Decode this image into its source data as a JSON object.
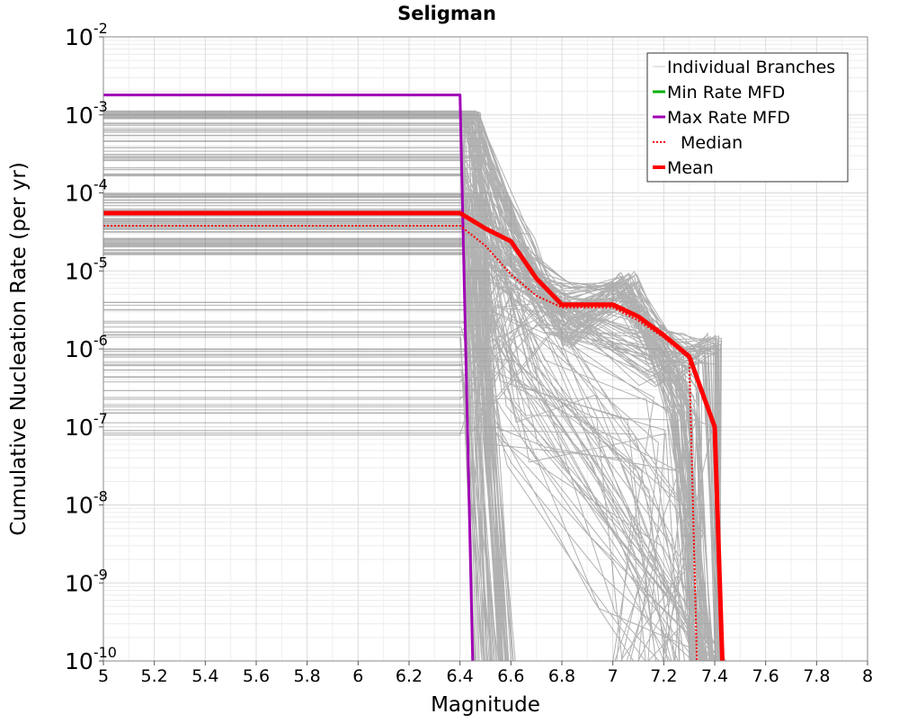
{
  "chart_data": {
    "type": "line",
    "title": "Seligman",
    "xlabel": "Magnitude",
    "ylabel": "Cumulative Nucleation Rate (per yr)",
    "xlim": [
      5,
      8
    ],
    "ylim": [
      1e-10,
      0.01
    ],
    "yscale": "log",
    "x_ticks": [
      "5",
      "5.2",
      "5.4",
      "5.6",
      "5.8",
      "6",
      "6.2",
      "6.4",
      "6.6",
      "6.8",
      "7",
      "7.2",
      "7.4",
      "7.6",
      "7.8",
      "8"
    ],
    "y_ticks": [
      {
        "base": "10",
        "exp": "-10",
        "value": 1e-10
      },
      {
        "base": "10",
        "exp": "-9",
        "value": 1e-09
      },
      {
        "base": "10",
        "exp": "-8",
        "value": 1e-08
      },
      {
        "base": "10",
        "exp": "-7",
        "value": 1e-07
      },
      {
        "base": "10",
        "exp": "-6",
        "value": 1e-06
      },
      {
        "base": "10",
        "exp": "-5",
        "value": 1e-05
      },
      {
        "base": "10",
        "exp": "-4",
        "value": 0.0001
      },
      {
        "base": "10",
        "exp": "-3",
        "value": 0.001
      },
      {
        "base": "10",
        "exp": "-2",
        "value": 0.01
      }
    ],
    "grid": true,
    "legend_position": "top-right",
    "legend": [
      {
        "label": "Individual Branches",
        "color": "#c8c8c8",
        "style": "solid-thin"
      },
      {
        "label": "Min Rate MFD",
        "color": "#00b000",
        "style": "solid"
      },
      {
        "label": "Max Rate MFD",
        "color": "#a000b4",
        "style": "solid"
      },
      {
        "label": "Median",
        "color": "#ff0000",
        "style": "dotted"
      },
      {
        "label": "Mean",
        "color": "#ff0000",
        "style": "solid-thick"
      }
    ],
    "series": [
      {
        "name": "Max Rate MFD",
        "color": "#a000b4",
        "x": [
          5.0,
          6.4,
          6.45,
          6.45
        ],
        "y": [
          0.0018,
          0.0018,
          1e-10,
          1e-10
        ]
      },
      {
        "name": "Mean",
        "color": "#ff0000",
        "x": [
          5.0,
          6.4,
          6.5,
          6.6,
          6.7,
          6.8,
          6.9,
          7.0,
          7.1,
          7.2,
          7.3,
          7.4,
          7.43
        ],
        "y": [
          5.5e-05,
          5.5e-05,
          3.5e-05,
          2.4e-05,
          8e-06,
          3.7e-06,
          3.7e-06,
          3.7e-06,
          2.6e-06,
          1.5e-06,
          8e-07,
          1e-07,
          1e-10
        ]
      },
      {
        "name": "Median",
        "color": "#ff0000",
        "x": [
          5.0,
          6.4,
          6.5,
          6.6,
          6.7,
          6.8,
          6.9,
          7.0,
          7.1,
          7.2,
          7.3,
          7.33
        ],
        "y": [
          3.8e-05,
          3.8e-05,
          2.1e-05,
          9e-06,
          4.8e-06,
          3.4e-06,
          3.4e-06,
          3.4e-06,
          2.3e-06,
          1.4e-06,
          7.5e-07,
          1e-10
        ]
      }
    ]
  }
}
